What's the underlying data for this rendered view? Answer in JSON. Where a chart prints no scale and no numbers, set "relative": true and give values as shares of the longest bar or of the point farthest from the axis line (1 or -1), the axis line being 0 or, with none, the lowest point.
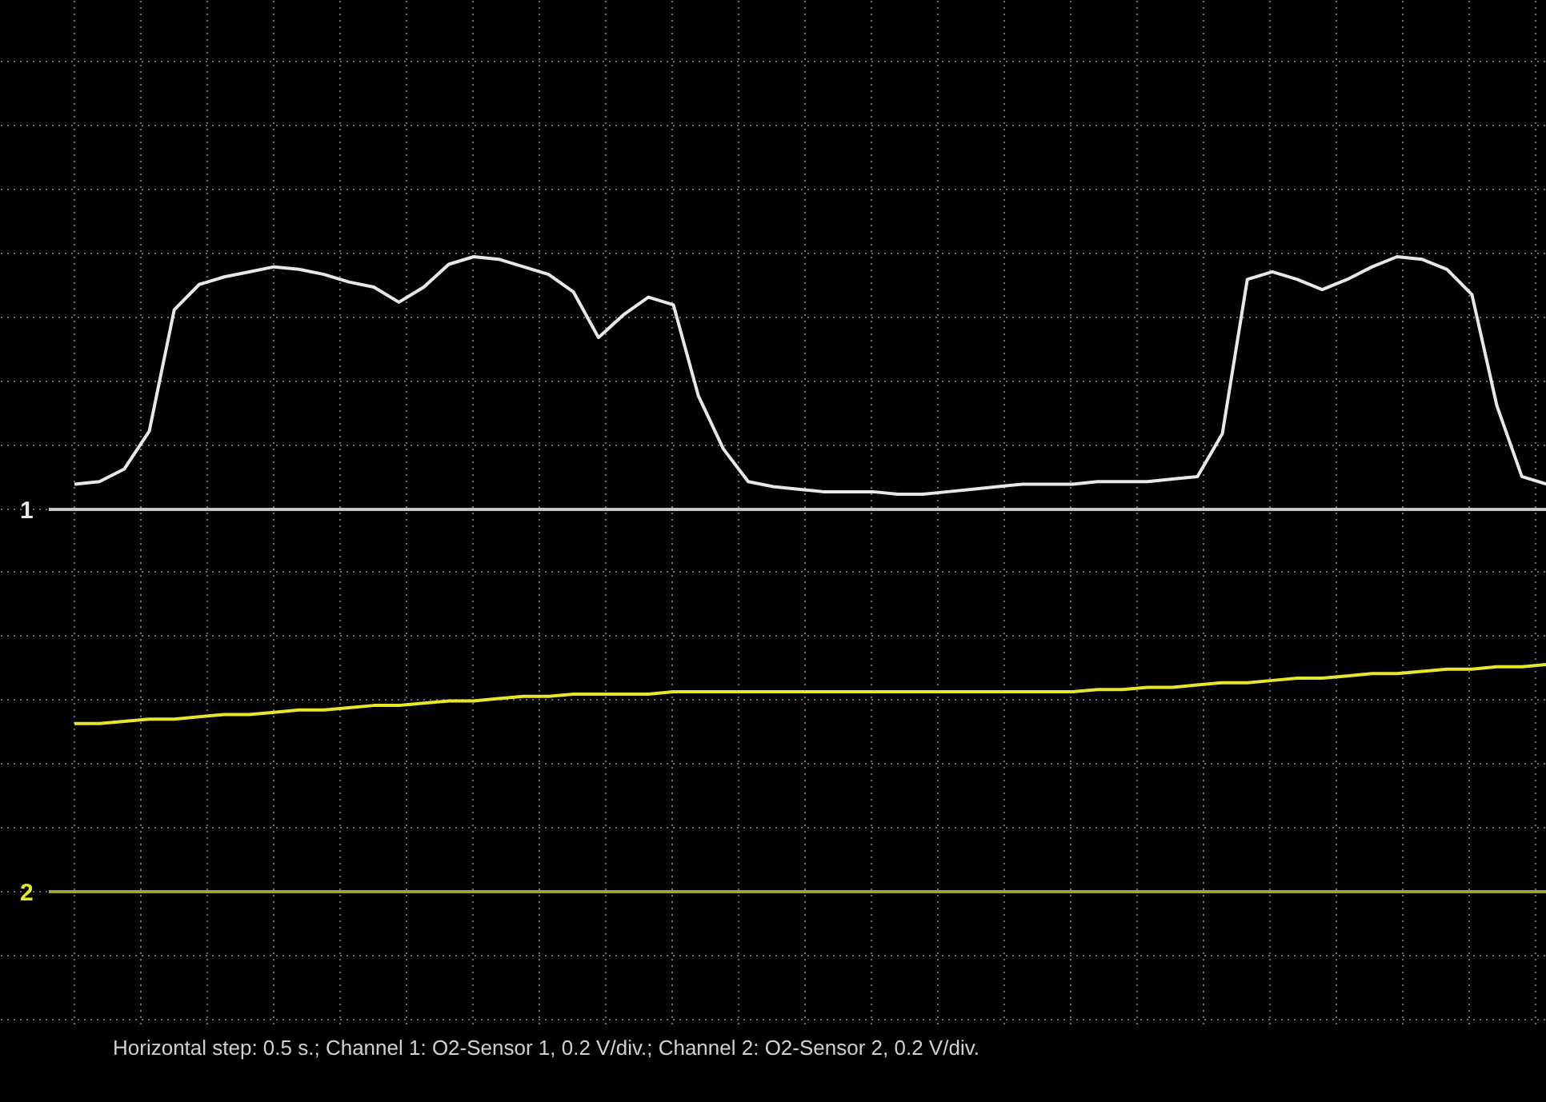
{
  "chart_data": [
    {
      "type": "line",
      "relative": true,
      "grid": true,
      "categories": [
        null,
        null,
        null,
        null,
        null,
        null,
        null,
        null,
        null,
        null,
        null,
        null,
        null,
        null,
        null,
        null,
        null,
        null,
        null,
        null,
        null,
        null,
        null,
        null,
        null,
        null,
        null,
        null,
        null,
        null,
        null,
        null,
        null,
        null,
        null,
        null,
        null,
        null,
        null,
        null,
        null,
        null,
        null,
        null,
        null,
        null,
        null,
        null,
        null,
        null,
        null,
        null,
        null,
        null,
        null,
        null,
        null,
        null,
        null,
        null
      ],
      "series": [
        {
          "name": "1",
          "color": "#e8e8e8",
          "values": [
            0.1,
            0.11,
            0.16,
            0.31,
            0.79,
            0.89,
            0.92,
            0.94,
            0.96,
            0.95,
            0.93,
            0.9,
            0.88,
            0.82,
            0.88,
            0.97,
            1.0,
            0.99,
            0.96,
            0.93,
            0.86,
            0.68,
            0.77,
            0.84,
            0.81,
            0.45,
            0.24,
            0.11,
            0.09,
            0.08,
            0.07,
            0.07,
            0.07,
            0.06,
            0.06,
            0.07,
            0.08,
            0.09,
            0.1,
            0.1,
            0.1,
            0.11,
            0.11,
            0.11,
            0.12,
            0.13,
            0.3,
            0.91,
            0.94,
            0.91,
            0.87,
            0.91,
            0.96,
            1.0,
            0.99,
            0.95,
            0.85,
            0.41,
            0.13,
            0.1
          ]
        }
      ],
      "ref_lines": [
        {
          "axis": "y",
          "value": 0,
          "color": "#c8c8c8"
        }
      ]
    },
    {
      "type": "line",
      "relative": true,
      "grid": true,
      "categories": [
        null,
        null,
        null,
        null,
        null,
        null,
        null,
        null,
        null,
        null,
        null,
        null,
        null,
        null,
        null,
        null,
        null,
        null,
        null,
        null,
        null,
        null,
        null,
        null,
        null,
        null,
        null,
        null,
        null,
        null,
        null,
        null,
        null,
        null,
        null,
        null,
        null,
        null,
        null,
        null,
        null,
        null,
        null,
        null,
        null,
        null,
        null,
        null,
        null,
        null,
        null,
        null,
        null,
        null,
        null,
        null,
        null,
        null,
        null,
        null
      ],
      "series": [
        {
          "name": "2",
          "color": "#e6e62e",
          "values": [
            0.74,
            0.74,
            0.75,
            0.76,
            0.76,
            0.77,
            0.78,
            0.78,
            0.79,
            0.8,
            0.8,
            0.81,
            0.82,
            0.82,
            0.83,
            0.84,
            0.84,
            0.85,
            0.86,
            0.86,
            0.87,
            0.87,
            0.87,
            0.87,
            0.88,
            0.88,
            0.88,
            0.88,
            0.88,
            0.88,
            0.88,
            0.88,
            0.88,
            0.88,
            0.88,
            0.88,
            0.88,
            0.88,
            0.88,
            0.88,
            0.88,
            0.89,
            0.89,
            0.9,
            0.9,
            0.91,
            0.92,
            0.92,
            0.93,
            0.94,
            0.94,
            0.95,
            0.96,
            0.96,
            0.97,
            0.98,
            0.98,
            0.99,
            0.99,
            1.0
          ]
        }
      ],
      "ref_lines": [
        {
          "axis": "y",
          "value": 0,
          "color": "#a0a040"
        }
      ],
      "annotations": [
        "Horizontal step: 0.5 s.; Channel 1: O2-Sensor 1, 0.2 V/div.; Channel 2: O2-Sensor 2, 0.2 V/div."
      ]
    }
  ]
}
